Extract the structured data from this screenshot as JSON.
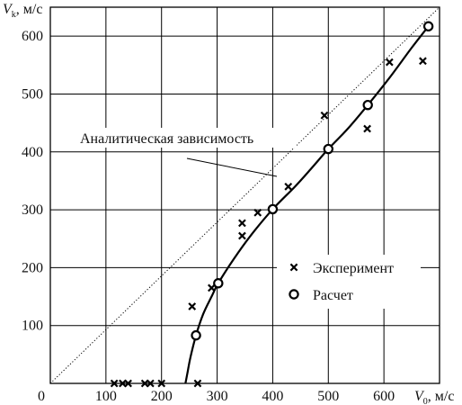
{
  "chart_data": {
    "type": "scatter",
    "ylabel": {
      "main": "V",
      "sub": "k",
      "unit": ", м/с"
    },
    "xlabel": {
      "main": "V",
      "sub": "0",
      "unit": ", м/с"
    },
    "xlim": [
      0,
      700
    ],
    "ylim": [
      0,
      650
    ],
    "x_ticks": [
      0,
      100,
      200,
      300,
      400,
      500,
      600
    ],
    "y_ticks": [
      100,
      200,
      300,
      400,
      500,
      600
    ],
    "grid": true,
    "legend_position": "lower-right",
    "annotation": "Аналитическая зависимость",
    "series": [
      {
        "name": "Эксперимент",
        "marker": "x",
        "points": [
          [
            115,
            0
          ],
          [
            130,
            0
          ],
          [
            140,
            0
          ],
          [
            170,
            0
          ],
          [
            180,
            0
          ],
          [
            200,
            0
          ],
          [
            265,
            0
          ],
          [
            255,
            133
          ],
          [
            290,
            165
          ],
          [
            345,
            255
          ],
          [
            345,
            277
          ],
          [
            373,
            295
          ],
          [
            428,
            340
          ],
          [
            493,
            463
          ],
          [
            570,
            440
          ],
          [
            610,
            555
          ],
          [
            670,
            557
          ]
        ]
      },
      {
        "name": "Расчет",
        "marker": "o",
        "points": [
          [
            262,
            83
          ],
          [
            302,
            173
          ],
          [
            400,
            301
          ],
          [
            500,
            405
          ],
          [
            571,
            481
          ],
          [
            680,
            617
          ]
        ]
      }
    ],
    "curve": [
      [
        243,
        0
      ],
      [
        247,
        20
      ],
      [
        252,
        45
      ],
      [
        262,
        83
      ],
      [
        275,
        120
      ],
      [
        290,
        150
      ],
      [
        302,
        173
      ],
      [
        330,
        215
      ],
      [
        360,
        255
      ],
      [
        400,
        301
      ],
      [
        440,
        340
      ],
      [
        470,
        372
      ],
      [
        500,
        405
      ],
      [
        535,
        440
      ],
      [
        571,
        481
      ],
      [
        610,
        528
      ],
      [
        650,
        580
      ],
      [
        680,
        617
      ]
    ],
    "diagonal": [
      [
        0,
        0
      ],
      [
        700,
        650
      ]
    ]
  }
}
